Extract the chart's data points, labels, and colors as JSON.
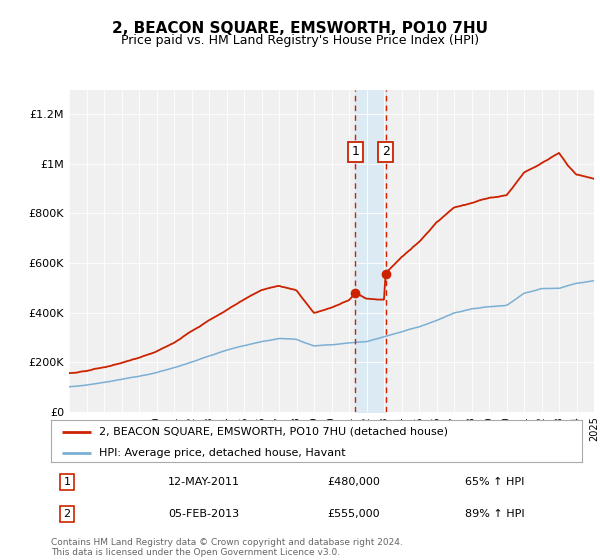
{
  "title": "2, BEACON SQUARE, EMSWORTH, PO10 7HU",
  "subtitle": "Price paid vs. HM Land Registry's House Price Index (HPI)",
  "legend_label_red": "2, BEACON SQUARE, EMSWORTH, PO10 7HU (detached house)",
  "legend_label_blue": "HPI: Average price, detached house, Havant",
  "annotation1_date": "12-MAY-2011",
  "annotation1_price": "£480,000",
  "annotation1_hpi": "65% ↑ HPI",
  "annotation1_year": 2011.37,
  "annotation1_value": 480000,
  "annotation2_date": "05-FEB-2013",
  "annotation2_price": "£555,000",
  "annotation2_hpi": "89% ↑ HPI",
  "annotation2_year": 2013.09,
  "annotation2_value": 555000,
  "footer": "Contains HM Land Registry data © Crown copyright and database right 2024.\nThis data is licensed under the Open Government Licence v3.0.",
  "ylim": [
    0,
    1300000
  ],
  "yticks": [
    0,
    200000,
    400000,
    600000,
    800000,
    1000000,
    1200000
  ],
  "ytick_labels": [
    "£0",
    "£200K",
    "£400K",
    "£600K",
    "£800K",
    "£1M",
    "£1.2M"
  ],
  "background_color": "#ffffff",
  "plot_bg_color": "#f0f0f0",
  "red_color": "#cc2200",
  "blue_color": "#7bafd4",
  "shade_color": "#daeaf5",
  "grid_color": "#ffffff",
  "hpi_key_years": [
    1995,
    1996,
    1997,
    1998,
    1999,
    2000,
    2001,
    2002,
    2003,
    2004,
    2005,
    2006,
    2007,
    2008,
    2009,
    2010,
    2011,
    2012,
    2013,
    2014,
    2015,
    2016,
    2017,
    2018,
    2019,
    2020,
    2021,
    2022,
    2023,
    2024,
    2025
  ],
  "hpi_key_vals": [
    100000,
    108000,
    118000,
    130000,
    142000,
    158000,
    178000,
    200000,
    222000,
    245000,
    262000,
    278000,
    290000,
    285000,
    258000,
    262000,
    270000,
    275000,
    295000,
    315000,
    335000,
    360000,
    390000,
    405000,
    415000,
    420000,
    470000,
    490000,
    490000,
    510000,
    520000
  ],
  "red_key_years": [
    1995,
    1996,
    1997,
    1998,
    1999,
    2000,
    2001,
    2002,
    2003,
    2004,
    2005,
    2006,
    2007,
    2008,
    2009,
    2010,
    2011.0,
    2011.37,
    2011.37,
    2012.0,
    2013.0,
    2013.09,
    2013.09,
    2014,
    2015,
    2016,
    2017,
    2018,
    2019,
    2020,
    2021,
    2022,
    2022.5,
    2023,
    2023.5,
    2024,
    2025
  ],
  "red_key_vals": [
    155000,
    165000,
    180000,
    200000,
    220000,
    245000,
    280000,
    325000,
    370000,
    410000,
    450000,
    490000,
    505000,
    490000,
    400000,
    420000,
    450000,
    480000,
    480000,
    455000,
    450000,
    555000,
    555000,
    620000,
    680000,
    760000,
    820000,
    840000,
    860000,
    870000,
    960000,
    1000000,
    1020000,
    1040000,
    990000,
    955000,
    940000
  ]
}
